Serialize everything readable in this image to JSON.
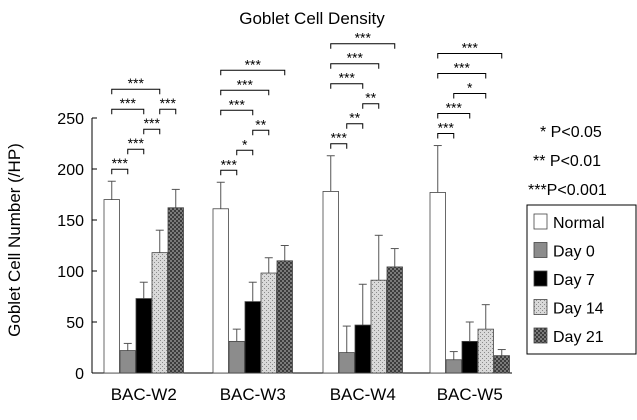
{
  "chart_data": {
    "type": "bar",
    "title": "Goblet Cell Density",
    "ylabel": "Goblet Cell Number (/HP)",
    "xlabel": "",
    "ylim": [
      0,
      250
    ],
    "yticks": [
      0,
      50,
      100,
      150,
      200,
      250
    ],
    "categories": [
      "BAC-W2",
      "BAC-W3",
      "BAC-W4",
      "BAC-W5"
    ],
    "series": [
      {
        "name": "Normal",
        "pattern": "white",
        "values": [
          170,
          161,
          178,
          177
        ],
        "errors": [
          18,
          26,
          35,
          46
        ]
      },
      {
        "name": "Day 0",
        "pattern": "gray",
        "values": [
          22,
          31,
          20,
          13
        ],
        "errors": [
          7,
          12,
          26,
          8
        ]
      },
      {
        "name": "Day 7",
        "pattern": "black",
        "values": [
          73,
          70,
          47,
          31
        ],
        "errors": [
          16,
          19,
          40,
          19
        ]
      },
      {
        "name": "Day 14",
        "pattern": "light-dots",
        "values": [
          118,
          98,
          91,
          43
        ],
        "errors": [
          22,
          15,
          44,
          24
        ]
      },
      {
        "name": "Day 21",
        "pattern": "dark-check",
        "values": [
          162,
          110,
          104,
          17
        ],
        "errors": [
          18,
          15,
          18,
          6
        ]
      }
    ],
    "significance": [
      {
        "group": 0,
        "from": 0,
        "to": 1,
        "label": "***"
      },
      {
        "group": 0,
        "from": 0,
        "to": 2,
        "label": "***"
      },
      {
        "group": 0,
        "from": 0,
        "to": 3,
        "label": "***"
      },
      {
        "group": 0,
        "from": 1,
        "to": 2,
        "label": "***"
      },
      {
        "group": 0,
        "from": 2,
        "to": 3,
        "label": "***"
      },
      {
        "group": 0,
        "from": 3,
        "to": 4,
        "label": "***"
      },
      {
        "group": 1,
        "from": 0,
        "to": 1,
        "label": "***"
      },
      {
        "group": 1,
        "from": 0,
        "to": 2,
        "label": "***"
      },
      {
        "group": 1,
        "from": 0,
        "to": 3,
        "label": "***"
      },
      {
        "group": 1,
        "from": 0,
        "to": 4,
        "label": "***"
      },
      {
        "group": 1,
        "from": 1,
        "to": 2,
        "label": "*"
      },
      {
        "group": 1,
        "from": 2,
        "to": 3,
        "label": "**"
      },
      {
        "group": 2,
        "from": 0,
        "to": 1,
        "label": "***"
      },
      {
        "group": 2,
        "from": 0,
        "to": 2,
        "label": "***"
      },
      {
        "group": 2,
        "from": 0,
        "to": 3,
        "label": "***"
      },
      {
        "group": 2,
        "from": 0,
        "to": 4,
        "label": "***"
      },
      {
        "group": 2,
        "from": 1,
        "to": 2,
        "label": "**"
      },
      {
        "group": 2,
        "from": 2,
        "to": 3,
        "label": "**"
      },
      {
        "group": 3,
        "from": 0,
        "to": 1,
        "label": "***"
      },
      {
        "group": 3,
        "from": 0,
        "to": 2,
        "label": "***"
      },
      {
        "group": 3,
        "from": 0,
        "to": 3,
        "label": "***"
      },
      {
        "group": 3,
        "from": 0,
        "to": 4,
        "label": "***"
      },
      {
        "group": 3,
        "from": 1,
        "to": 3,
        "label": "*"
      }
    ],
    "pvalue_key": [
      "* P<0.05",
      "** P<0.01",
      "***P<0.001"
    ],
    "grid": false,
    "legend_position": "right"
  }
}
